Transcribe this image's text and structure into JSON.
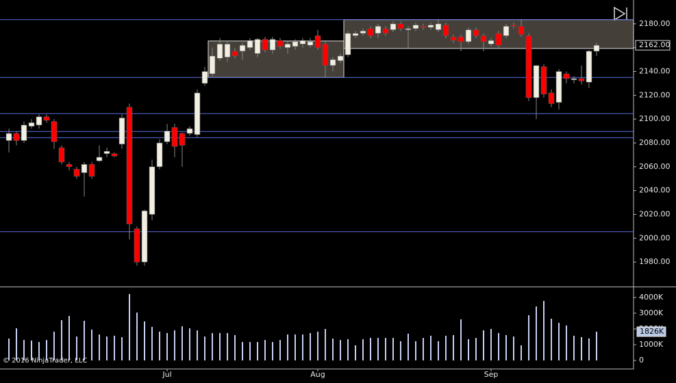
{
  "chart_data": {
    "type": "candlestick",
    "categories": [
      null,
      null,
      null,
      null,
      null,
      null,
      null,
      null,
      null,
      null,
      null,
      null,
      null,
      null,
      null,
      null,
      null,
      null,
      null,
      null,
      null,
      "Jul",
      null,
      null,
      null,
      null,
      null,
      null,
      null,
      null,
      null,
      null,
      null,
      null,
      null,
      null,
      null,
      null,
      null,
      null,
      null,
      "Aug",
      null,
      null,
      null,
      null,
      null,
      null,
      null,
      null,
      null,
      null,
      null,
      null,
      null,
      null,
      null,
      null,
      null,
      null,
      null,
      null,
      null,
      null,
      "Sep",
      null,
      null,
      null,
      null,
      null,
      null,
      null,
      null,
      null,
      null,
      null,
      null,
      null,
      null
    ],
    "open": [
      2082,
      2088,
      2082,
      2094,
      2095,
      2102,
      2098,
      2076,
      2062,
      2058,
      2055,
      2062,
      2065,
      2071,
      2071,
      2079,
      2110,
      2008,
      1980,
      2020,
      2060,
      2081,
      2093,
      2088,
      2088,
      2087,
      2130,
      2138,
      2151,
      2152,
      2157,
      2157,
      2160,
      2155,
      2167,
      2158,
      2166,
      2160,
      2161,
      2163,
      2162,
      2170,
      2163,
      2145,
      2149,
      2154,
      2170,
      2172,
      2176,
      2172,
      2176,
      2175,
      2180,
      2175,
      2176,
      2178,
      2177,
      2175,
      2179,
      2169,
      2169,
      2165,
      2175,
      2170,
      2163,
      2172,
      2170,
      2179,
      2178,
      2170,
      2118,
      2144,
      2122,
      2114,
      2138,
      2133,
      2134,
      2131,
      2157
    ],
    "high": [
      2092,
      2090,
      2098,
      2100,
      2104,
      2104,
      2100,
      2078,
      2064,
      2060,
      2064,
      2064,
      2078,
      2076,
      2072,
      2104,
      2113,
      2010,
      2024,
      2066,
      2083,
      2096,
      2096,
      2089,
      2094,
      2125,
      2144,
      2160,
      2168,
      2165,
      2160,
      2164,
      2168,
      2168,
      2169,
      2169,
      2168,
      2165,
      2167,
      2168,
      2168,
      2175,
      2165,
      2152,
      2155,
      2174,
      2174,
      2176,
      2178,
      2180,
      2178,
      2182,
      2182,
      2178,
      2181,
      2180,
      2181,
      2184,
      2181,
      2171,
      2171,
      2177,
      2177,
      2172,
      2168,
      2174,
      2180,
      2181,
      2184,
      2172,
      2145,
      2146,
      2125,
      2142,
      2140,
      2136,
      2145,
      2158,
      2164
    ],
    "low": [
      2072,
      2078,
      2080,
      2092,
      2092,
      2097,
      2075,
      2062,
      2057,
      2050,
      2035,
      2050,
      2064,
      2068,
      2068,
      2075,
      1999,
      1977,
      1977,
      2015,
      2058,
      2079,
      2068,
      2060,
      2086,
      2085,
      2128,
      2136,
      2149,
      2148,
      2151,
      2150,
      2158,
      2152,
      2156,
      2155,
      2159,
      2155,
      2158,
      2160,
      2160,
      2158,
      2135,
      2140,
      2147,
      2152,
      2168,
      2170,
      2168,
      2168,
      2170,
      2173,
      2174,
      2160,
      2174,
      2175,
      2175,
      2173,
      2168,
      2164,
      2157,
      2163,
      2168,
      2157,
      2161,
      2160,
      2168,
      2176,
      2169,
      2115,
      2100,
      2118,
      2110,
      2108,
      2130,
      2130,
      2129,
      2126,
      2153
    ],
    "close": [
      2088,
      2082,
      2095,
      2097,
      2102,
      2099,
      2081,
      2064,
      2060,
      2052,
      2062,
      2052,
      2068,
      2073,
      2069,
      2101,
      2012,
      1980,
      2023,
      2060,
      2080,
      2090,
      2077,
      2078,
      2092,
      2122,
      2140,
      2153,
      2163,
      2163,
      2153,
      2162,
      2166,
      2167,
      2158,
      2167,
      2161,
      2163,
      2165,
      2166,
      2165,
      2160,
      2145,
      2150,
      2153,
      2172,
      2172,
      2174,
      2170,
      2178,
      2172,
      2180,
      2176,
      2176,
      2179,
      2177,
      2179,
      2180,
      2170,
      2166,
      2165,
      2175,
      2170,
      2165,
      2166,
      2162,
      2178,
      2178,
      2171,
      2118,
      2145,
      2121,
      2113,
      2140,
      2134,
      2134,
      2132,
      2157,
      2162
    ],
    "up_color": "#f2efe2",
    "down_color": "#ff0000",
    "ylim": [
      1960,
      2200
    ],
    "yticks": [
      {
        "value": 1980,
        "label": "1980.00"
      },
      {
        "value": 2000,
        "label": "2000.00"
      },
      {
        "value": 2020,
        "label": "2020.00"
      },
      {
        "value": 2040,
        "label": "2040.00"
      },
      {
        "value": 2060,
        "label": "2060.00"
      },
      {
        "value": 2080,
        "label": "2080.00"
      },
      {
        "value": 2100,
        "label": "2100.00"
      },
      {
        "value": 2120,
        "label": "2120.00"
      },
      {
        "value": 2140,
        "label": "2140.00"
      },
      {
        "value": 2160,
        "label": "2160.00"
      },
      {
        "value": 2180,
        "label": "2180.00"
      }
    ],
    "last_price": {
      "value": 2162,
      "label": "2162.00"
    },
    "hlines": [
      2183.5,
      2135,
      2104.6,
      2089.6,
      2084.4,
      2005.5
    ],
    "hline_color": "#5a6ee0",
    "zones": [
      {
        "start": 27,
        "end": 44,
        "low": 2135,
        "high": 2165.6
      },
      {
        "start": 45,
        "end": 78,
        "low": 2159.3,
        "high": 2183.5
      }
    ],
    "volume": {
      "values": [
        1390,
        2040,
        1300,
        1260,
        1170,
        1300,
        1830,
        2560,
        2830,
        1520,
        2520,
        1960,
        1650,
        1520,
        1570,
        1480,
        4220,
        3040,
        2480,
        2130,
        1830,
        1740,
        1910,
        2170,
        2040,
        1910,
        1520,
        1740,
        1740,
        1740,
        1610,
        1170,
        1170,
        1170,
        1300,
        1170,
        1300,
        1650,
        1650,
        1650,
        1740,
        1830,
        2000,
        1390,
        1300,
        1350,
        960,
        1350,
        1430,
        1430,
        1430,
        1430,
        1220,
        1700,
        1220,
        1430,
        1570,
        1220,
        1570,
        1610,
        2610,
        1350,
        1430,
        1910,
        2000,
        1740,
        1610,
        1520,
        960,
        2870,
        3430,
        3780,
        2650,
        2390,
        2220,
        1570,
        1480,
        1400,
        1826
      ],
      "color": "#c8d0f4",
      "ylim": [
        0,
        4650
      ],
      "yticks": [
        0,
        {
          "value": 1000,
          "label": "1000K"
        },
        {
          "value": 2000,
          "label": "2000K"
        },
        {
          "value": 3000,
          "label": "3000K"
        },
        {
          "value": 4000,
          "label": "4000K"
        }
      ],
      "last_value": {
        "value": 1826,
        "label": "1826K"
      }
    },
    "copyright": "© 2016 NinjaTrader, LLC"
  }
}
